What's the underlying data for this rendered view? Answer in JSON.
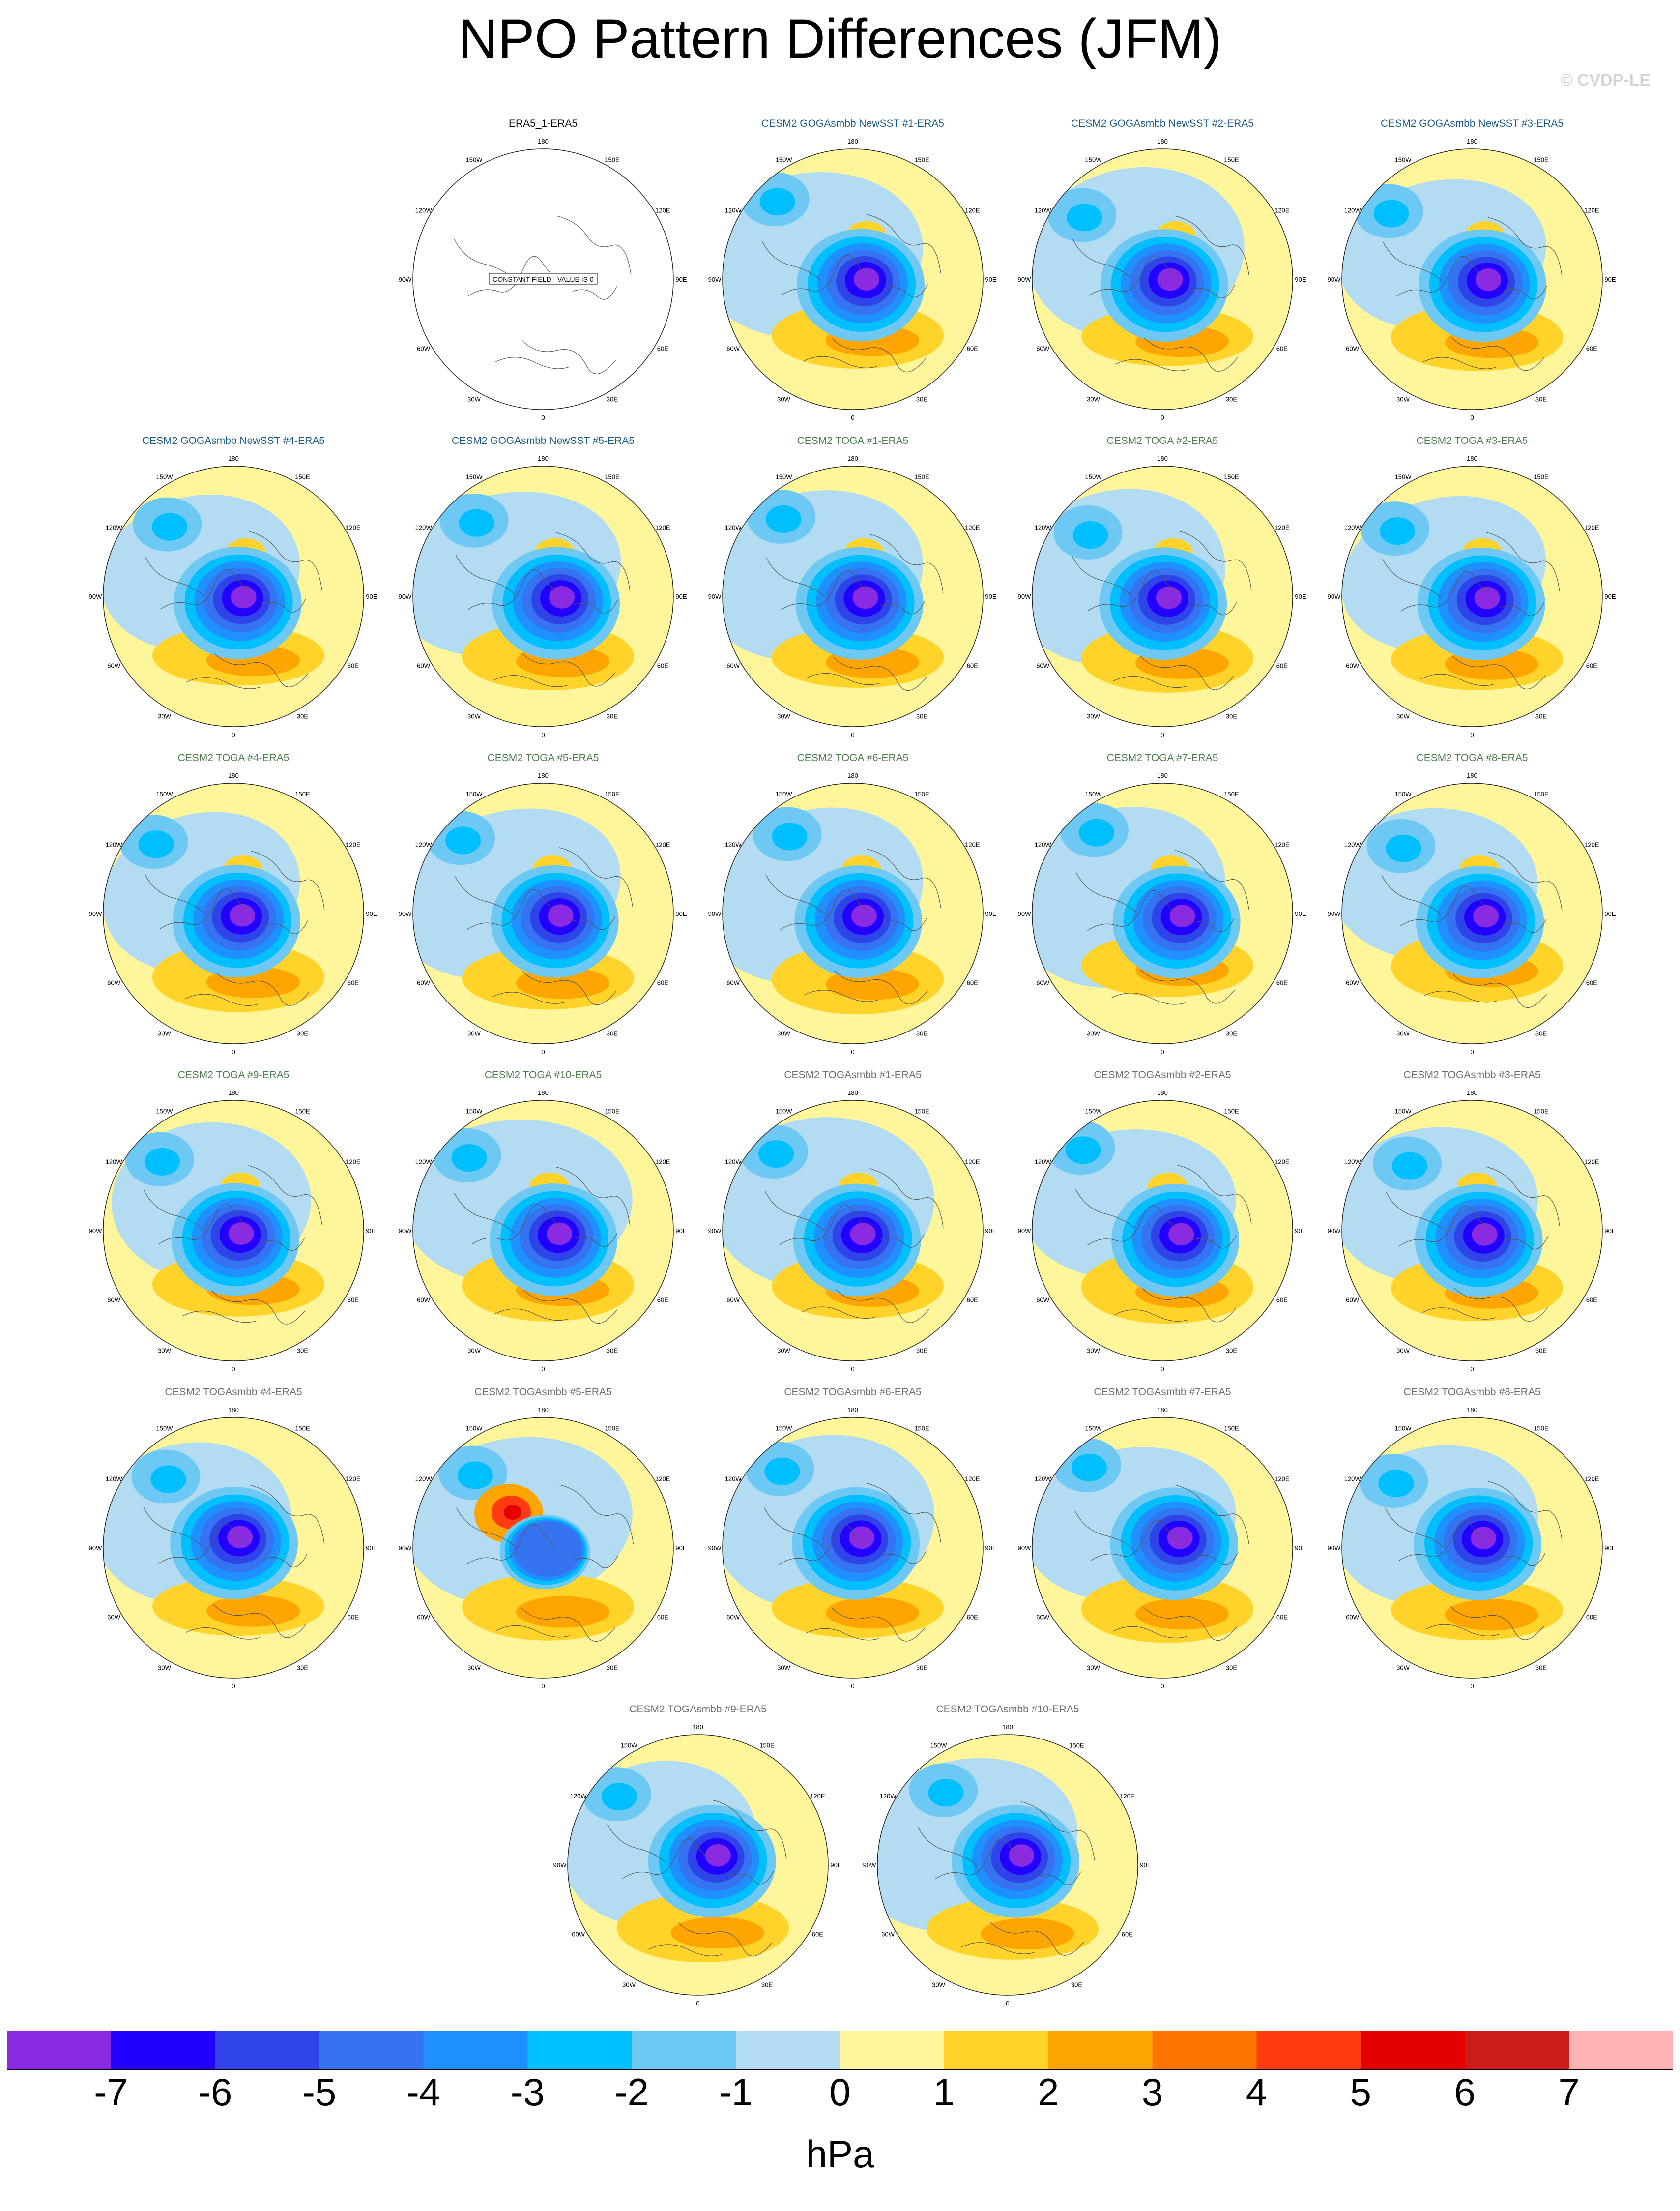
{
  "title": "NPO Pattern Differences (JFM)",
  "credit": "© CVDP-LE",
  "colors": {
    "obs_title": "#000000",
    "newsst_title": "#1a5a86",
    "toga_title": "#4e7d4e",
    "togasmbb_title": "#6e6e6e"
  },
  "panels": [
    {
      "title": "ERA5_1-ERA5",
      "group": "obs",
      "constant": true
    },
    {
      "title": "CESM2 GOGAsmbb NewSST #1-ERA5",
      "group": "newsst"
    },
    {
      "title": "CESM2 GOGAsmbb NewSST #2-ERA5",
      "group": "newsst"
    },
    {
      "title": "CESM2 GOGAsmbb NewSST #3-ERA5",
      "group": "newsst"
    },
    {
      "title": "CESM2 GOGAsmbb NewSST #4-ERA5",
      "group": "newsst"
    },
    {
      "title": "CESM2 GOGAsmbb NewSST #5-ERA5",
      "group": "newsst"
    },
    {
      "title": "CESM2 TOGA #1-ERA5",
      "group": "toga"
    },
    {
      "title": "CESM2 TOGA #2-ERA5",
      "group": "toga"
    },
    {
      "title": "CESM2 TOGA #3-ERA5",
      "group": "toga"
    },
    {
      "title": "CESM2 TOGA #4-ERA5",
      "group": "toga"
    },
    {
      "title": "CESM2 TOGA #5-ERA5",
      "group": "toga"
    },
    {
      "title": "CESM2 TOGA #6-ERA5",
      "group": "toga"
    },
    {
      "title": "CESM2 TOGA #7-ERA5",
      "group": "toga"
    },
    {
      "title": "CESM2 TOGA #8-ERA5",
      "group": "toga"
    },
    {
      "title": "CESM2 TOGA #9-ERA5",
      "group": "toga"
    },
    {
      "title": "CESM2 TOGA #10-ERA5",
      "group": "toga"
    },
    {
      "title": "CESM2 TOGAsmbb #1-ERA5",
      "group": "togasmbb"
    },
    {
      "title": "CESM2 TOGAsmbb #2-ERA5",
      "group": "togasmbb"
    },
    {
      "title": "CESM2 TOGAsmbb #3-ERA5",
      "group": "togasmbb"
    },
    {
      "title": "CESM2 TOGAsmbb #4-ERA5",
      "group": "togasmbb"
    },
    {
      "title": "CESM2 TOGAsmbb #5-ERA5",
      "group": "togasmbb"
    },
    {
      "title": "CESM2 TOGAsmbb #6-ERA5",
      "group": "togasmbb"
    },
    {
      "title": "CESM2 TOGAsmbb #7-ERA5",
      "group": "togasmbb"
    },
    {
      "title": "CESM2 TOGAsmbb #8-ERA5",
      "group": "togasmbb"
    },
    {
      "title": "CESM2 TOGAsmbb #9-ERA5",
      "group": "togasmbb"
    },
    {
      "title": "CESM2 TOGAsmbb #10-ERA5",
      "group": "togasmbb"
    }
  ],
  "constant_field_label": "CONSTANT FIELD - VALUE IS 0",
  "lon_labels": [
    "180",
    "150E",
    "120E",
    "90E",
    "60E",
    "30E",
    "0",
    "30W",
    "60W",
    "90W",
    "120W",
    "150W"
  ],
  "colorbar": {
    "colors": [
      "#8a2be2",
      "#2200ff",
      "#2e44e8",
      "#3573f0",
      "#1e90ff",
      "#00bfff",
      "#6dc8f4",
      "#b3dcf2",
      "#fff59a",
      "#ffd32a",
      "#ffa500",
      "#ff7400",
      "#ff3b12",
      "#e50000",
      "#cc1c1c",
      "#ffb3b3"
    ],
    "labels": [
      "-7",
      "-6",
      "-5",
      "-4",
      "-3",
      "-2",
      "-1",
      "0",
      "1",
      "2",
      "3",
      "4",
      "5",
      "6",
      "7"
    ],
    "units": "hPa"
  }
}
